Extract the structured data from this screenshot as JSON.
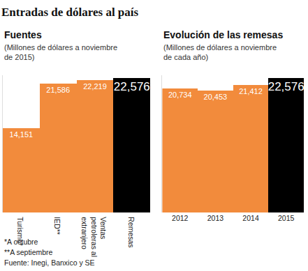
{
  "title": "Entradas de dólares al país",
  "notes": [
    "*A octubre",
    "**A septiembre",
    "Fuente: Inegi, Banxico y SE"
  ],
  "chart_data": [
    {
      "type": "bar",
      "title": "Fuentes",
      "subtitle": "(Millones de dólares a noviembre de 2015)",
      "categories": [
        "Turismo*",
        "IED**",
        "Ventas petroleras al extranjero",
        "Remesas"
      ],
      "values": [
        14151,
        21586,
        22219,
        22576
      ],
      "value_labels": [
        "14,151",
        "21,586",
        "22,219",
        "22,576"
      ],
      "colors": [
        "#f28b3c",
        "#f28b3c",
        "#f28b3c",
        "#000000"
      ],
      "data_labels": true,
      "tick_labels": "x",
      "ylim": [
        0,
        23000
      ]
    },
    {
      "type": "bar",
      "title": "Evolución de las remesas",
      "subtitle": "(Millones de dólares a noviembre de cada año)",
      "categories": [
        "2012",
        "2013",
        "2014",
        "2015"
      ],
      "values": [
        20734,
        20453,
        21412,
        22576
      ],
      "value_labels": [
        "20,734",
        "20,453",
        "21,412",
        "22,576"
      ],
      "colors": [
        "#f28b3c",
        "#f28b3c",
        "#f28b3c",
        "#000000"
      ],
      "data_labels": true,
      "tick_labels": "x",
      "ylim": [
        0,
        23000
      ]
    }
  ]
}
